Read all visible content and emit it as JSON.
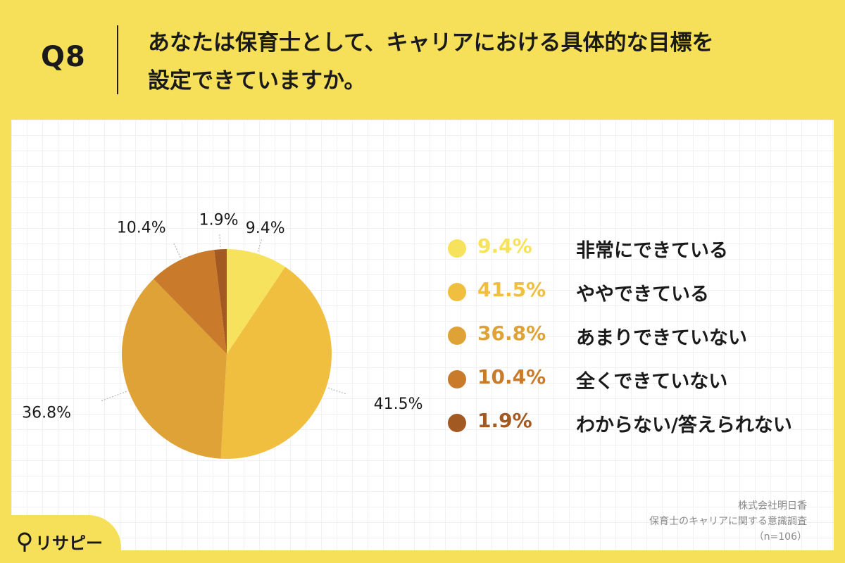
{
  "header": {
    "q_label": "Q8",
    "title_line1": "あなたは保育士として、キャリアにおける具体的な目標を",
    "title_line2": "設定できていますか。"
  },
  "chart_data": {
    "type": "pie",
    "labels": [
      "非常にできている",
      "ややできている",
      "あまりできていない",
      "全くできていない",
      "わからない/答えられない"
    ],
    "values": [
      9.4,
      41.5,
      36.8,
      10.4,
      1.9
    ],
    "value_labels": [
      "9.4%",
      "41.5%",
      "36.8%",
      "10.4%",
      "1.9%"
    ],
    "colors": [
      "#f6e25c",
      "#f0bf40",
      "#dea236",
      "#c97a2a",
      "#a25a22"
    ],
    "start": "12 o'clock, clockwise",
    "legend_position": "right"
  },
  "credit": {
    "line1": "株式会社明日香",
    "line2": "保育士のキャリアに関する意識調査",
    "line3": "（n=106）"
  },
  "logo": {
    "text": "リサピー",
    "icon": "pin-icon"
  }
}
